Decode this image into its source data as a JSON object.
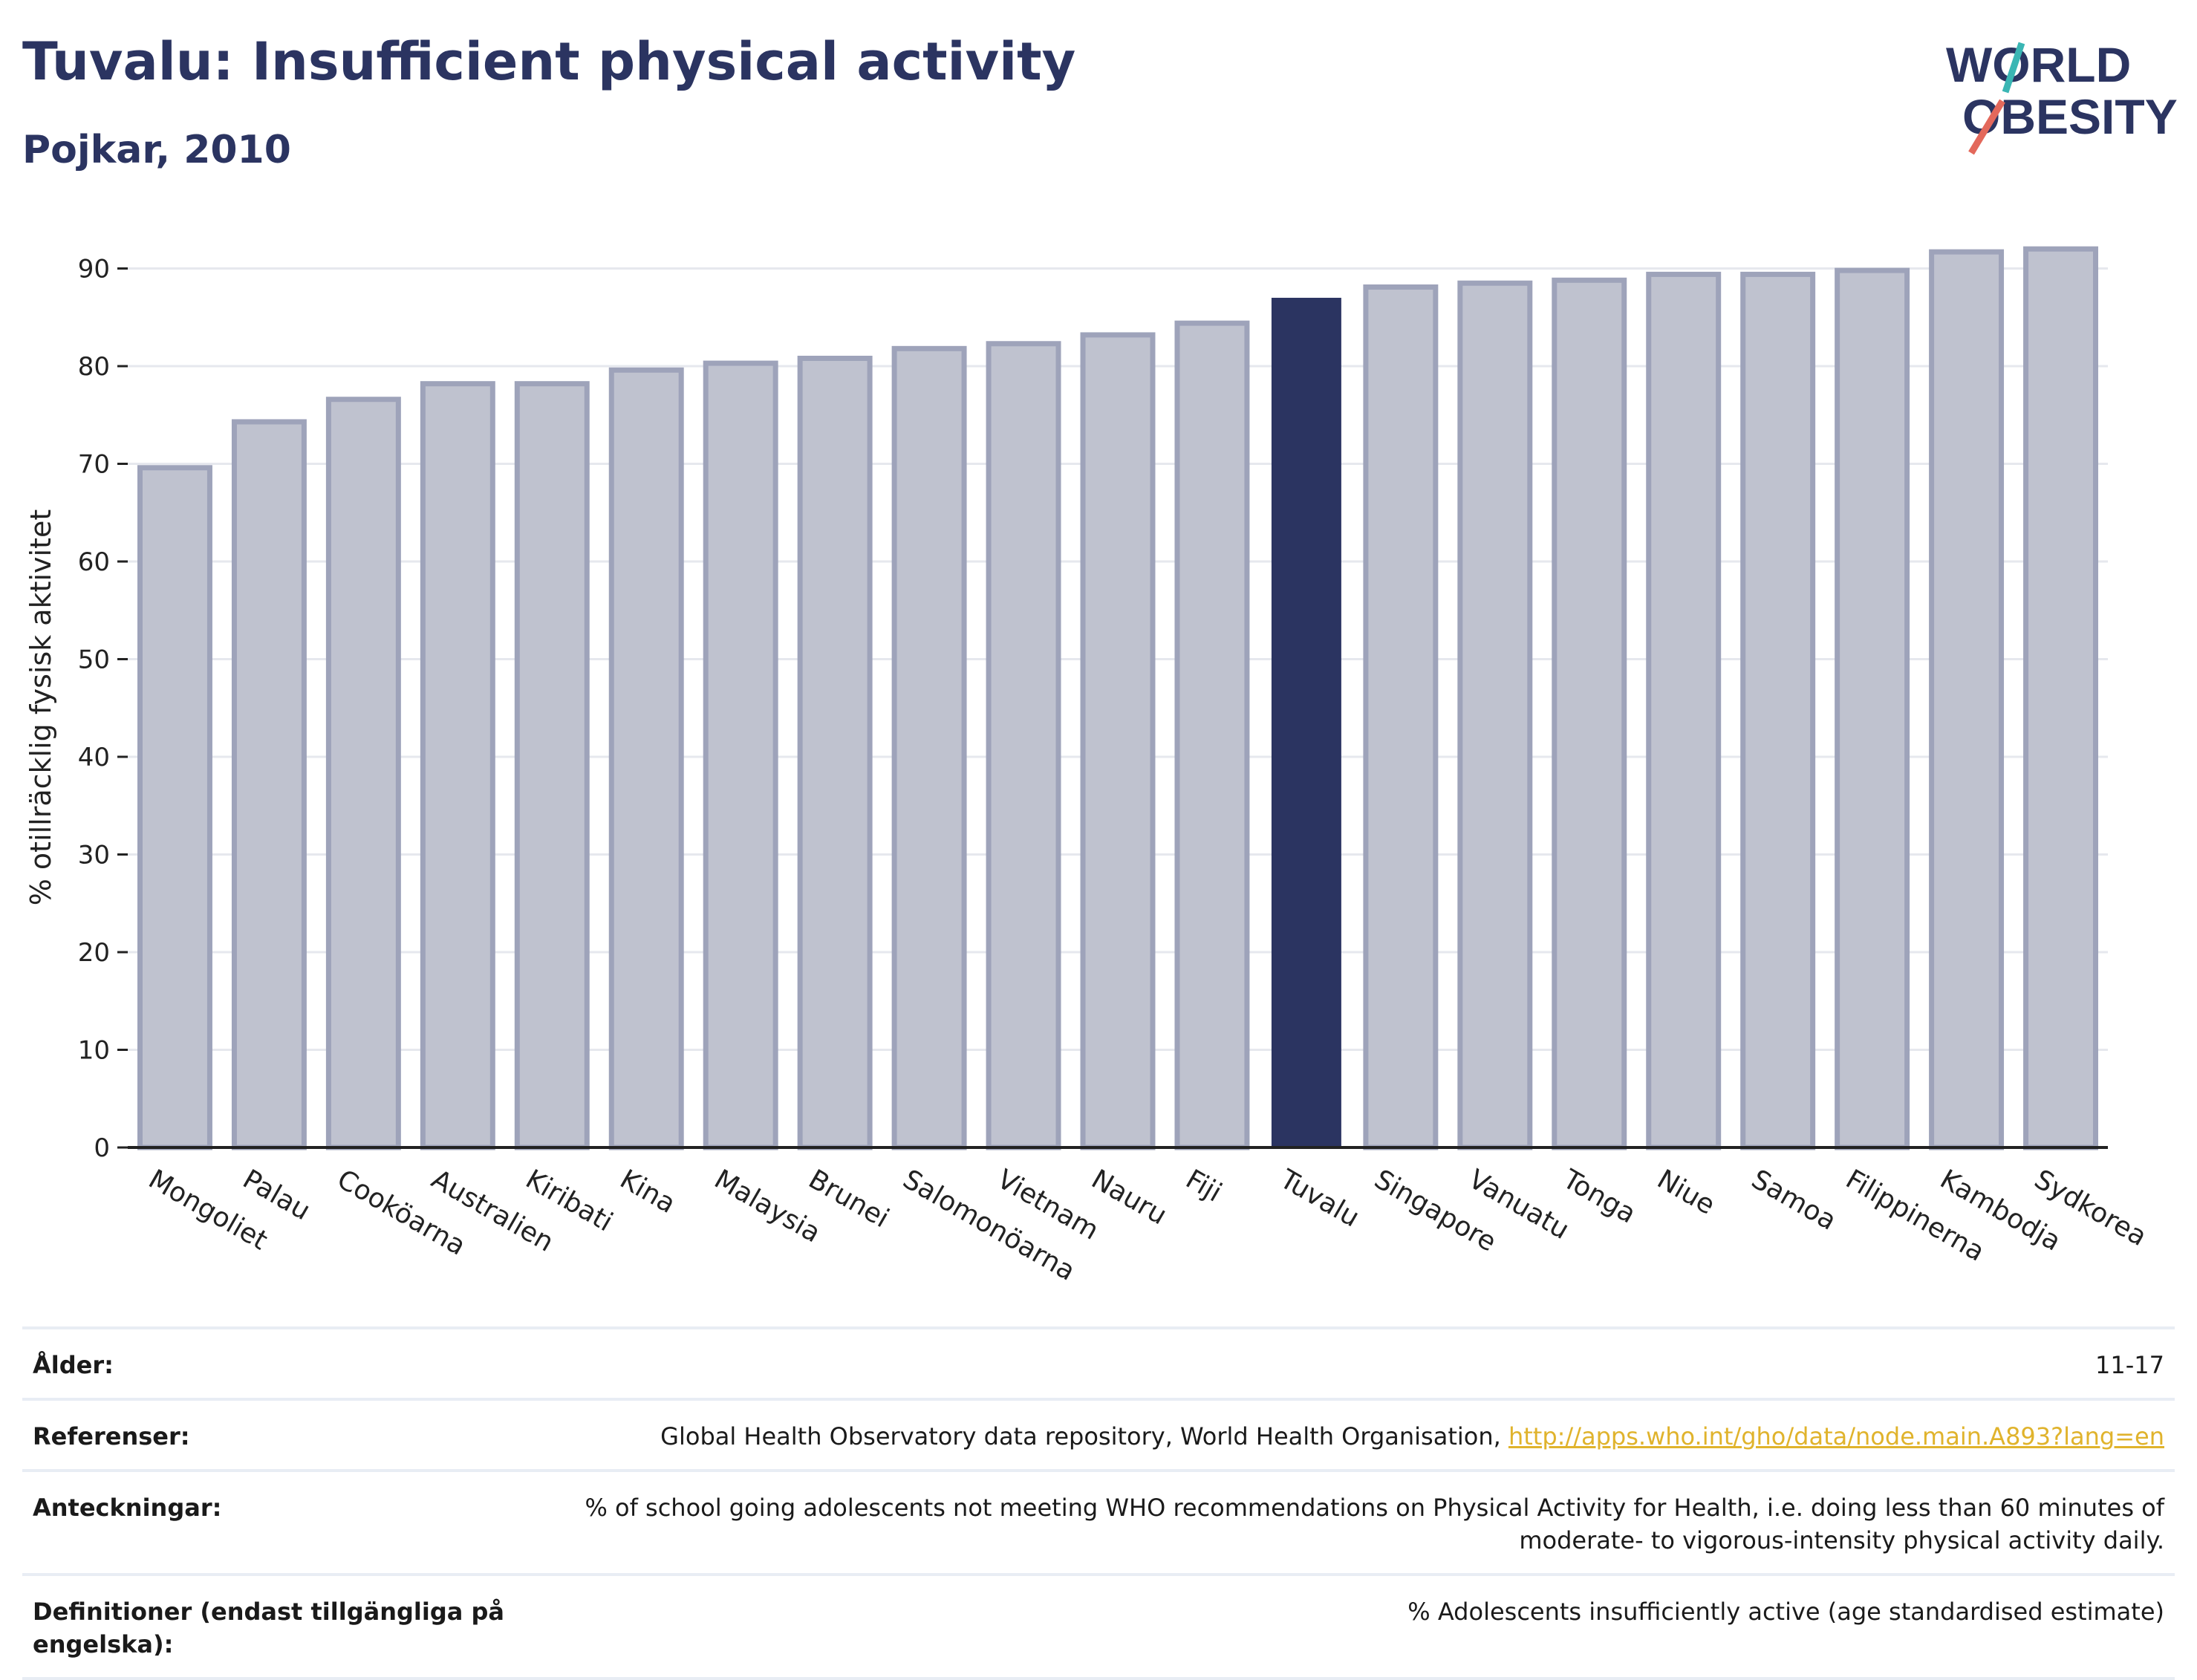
{
  "header": {
    "title": "Tuvalu: Insufficient physical activity",
    "subtitle": "Pojkar, 2010"
  },
  "logo": {
    "line1": "WORLD",
    "line2": "OBESITY",
    "text_color": "#2b3461",
    "slash_top_color": "#3ab6b4",
    "slash_bottom_color": "#e3685b"
  },
  "chart_data": {
    "type": "bar",
    "ylabel": "% otillräcklig fysisk aktivitet",
    "ylim": [
      0,
      92
    ],
    "yticks": [
      0,
      10,
      20,
      30,
      40,
      50,
      60,
      70,
      80,
      90
    ],
    "grid": true,
    "highlight": "Tuvalu",
    "colors": {
      "bar": "#bfc2cf",
      "bar_edge": "#9ea3ba",
      "highlight": "#2b3461",
      "grid": "#e6e8ee",
      "axis": "#222222"
    },
    "categories": [
      "Mongoliet",
      "Palau",
      "Cooköarna",
      "Australien",
      "Kiribati",
      "Kina",
      "Malaysia",
      "Brunei",
      "Salomonöarna",
      "Vietnam",
      "Nauru",
      "Fiji",
      "Tuvalu",
      "Singapore",
      "Vanuatu",
      "Tonga",
      "Niue",
      "Samoa",
      "Filippinerna",
      "Kambodja",
      "Sydkorea"
    ],
    "values": [
      69.6,
      74.3,
      76.6,
      78.2,
      78.2,
      79.6,
      80.3,
      80.8,
      81.8,
      82.3,
      83.2,
      84.4,
      87.0,
      88.1,
      88.5,
      88.8,
      89.4,
      89.4,
      89.8,
      91.7,
      92.0
    ]
  },
  "meta": {
    "age_label": "Ålder:",
    "age_value": "11-17",
    "refs_label": "Referenser:",
    "refs_text": "Global Health Observatory data repository, World Health Organisation, ",
    "refs_link": "http://apps.who.int/gho/data/node.main.A893?lang=en",
    "notes_label": "Anteckningar:",
    "notes_line1": "% of school going adolescents not meeting WHO recommendations on Physical Activity for Health, i.e. doing less than 60 minutes of",
    "notes_line2": "moderate- to vigorous-intensity physical activity daily.",
    "defs_label_line1": "Definitioner (endast tillgängliga på",
    "defs_label_line2": "engelska):",
    "defs_value": "% Adolescents insufficiently active (age standardised estimate)"
  }
}
